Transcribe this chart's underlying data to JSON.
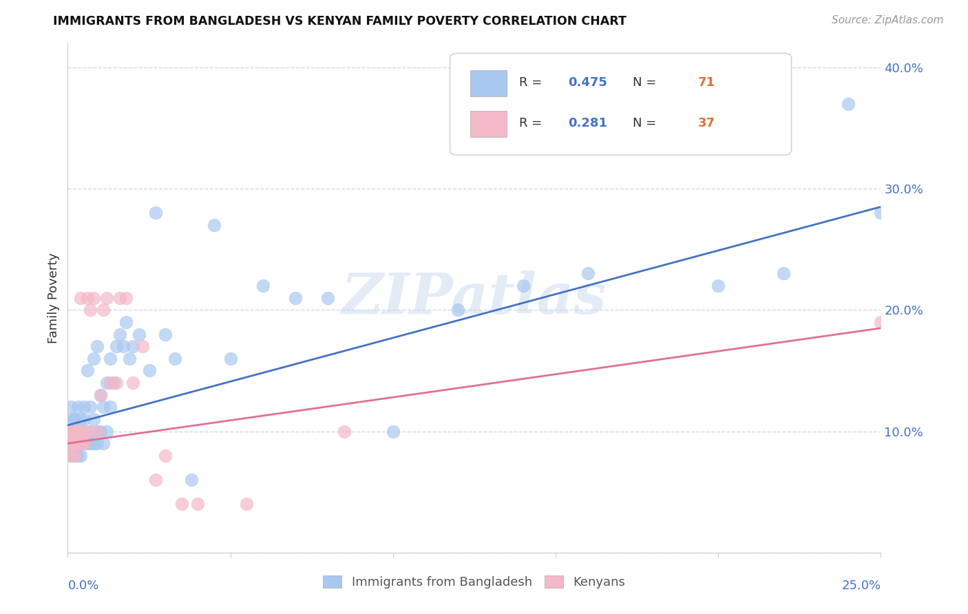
{
  "title": "IMMIGRANTS FROM BANGLADESH VS KENYAN FAMILY POVERTY CORRELATION CHART",
  "source": "Source: ZipAtlas.com",
  "ylabel": "Family Poverty",
  "xlim": [
    0.0,
    0.25
  ],
  "ylim": [
    0.0,
    0.42
  ],
  "yticks": [
    0.0,
    0.1,
    0.2,
    0.3,
    0.4
  ],
  "ytick_labels": [
    "",
    "10.0%",
    "20.0%",
    "30.0%",
    "40.0%"
  ],
  "legend_labels": [
    "Immigrants from Bangladesh",
    "Kenyans"
  ],
  "blue_color": "#a8c8f0",
  "pink_color": "#f5b8c8",
  "blue_line_color": "#4472c4",
  "pink_line_color": "#e07090",
  "watermark": "ZIPatlas",
  "blue_scatter_x": [
    0.001,
    0.001,
    0.001,
    0.001,
    0.001,
    0.002,
    0.002,
    0.002,
    0.002,
    0.002,
    0.002,
    0.003,
    0.003,
    0.003,
    0.003,
    0.003,
    0.004,
    0.004,
    0.004,
    0.004,
    0.005,
    0.005,
    0.005,
    0.005,
    0.006,
    0.006,
    0.006,
    0.007,
    0.007,
    0.007,
    0.008,
    0.008,
    0.008,
    0.009,
    0.009,
    0.009,
    0.01,
    0.01,
    0.011,
    0.011,
    0.012,
    0.012,
    0.013,
    0.013,
    0.014,
    0.015,
    0.016,
    0.017,
    0.018,
    0.019,
    0.02,
    0.022,
    0.025,
    0.027,
    0.03,
    0.033,
    0.038,
    0.045,
    0.05,
    0.06,
    0.07,
    0.08,
    0.1,
    0.12,
    0.14,
    0.16,
    0.175,
    0.2,
    0.22,
    0.24,
    0.25
  ],
  "blue_scatter_y": [
    0.1,
    0.12,
    0.09,
    0.11,
    0.08,
    0.1,
    0.11,
    0.08,
    0.09,
    0.1,
    0.11,
    0.09,
    0.1,
    0.12,
    0.08,
    0.09,
    0.1,
    0.11,
    0.09,
    0.08,
    0.1,
    0.12,
    0.09,
    0.11,
    0.15,
    0.1,
    0.09,
    0.12,
    0.1,
    0.09,
    0.16,
    0.11,
    0.09,
    0.17,
    0.1,
    0.09,
    0.13,
    0.1,
    0.12,
    0.09,
    0.14,
    0.1,
    0.16,
    0.12,
    0.14,
    0.17,
    0.18,
    0.17,
    0.19,
    0.16,
    0.17,
    0.18,
    0.15,
    0.28,
    0.18,
    0.16,
    0.06,
    0.27,
    0.16,
    0.22,
    0.21,
    0.21,
    0.1,
    0.2,
    0.22,
    0.23,
    0.35,
    0.22,
    0.23,
    0.37,
    0.28
  ],
  "pink_scatter_x": [
    0.001,
    0.001,
    0.001,
    0.001,
    0.001,
    0.002,
    0.002,
    0.002,
    0.002,
    0.003,
    0.003,
    0.004,
    0.004,
    0.004,
    0.005,
    0.005,
    0.006,
    0.006,
    0.007,
    0.008,
    0.009,
    0.01,
    0.011,
    0.012,
    0.013,
    0.015,
    0.016,
    0.018,
    0.02,
    0.023,
    0.027,
    0.03,
    0.035,
    0.04,
    0.055,
    0.085,
    0.25
  ],
  "pink_scatter_y": [
    0.1,
    0.09,
    0.08,
    0.1,
    0.09,
    0.09,
    0.1,
    0.09,
    0.08,
    0.1,
    0.09,
    0.21,
    0.1,
    0.09,
    0.1,
    0.09,
    0.21,
    0.1,
    0.2,
    0.21,
    0.1,
    0.13,
    0.2,
    0.21,
    0.14,
    0.14,
    0.21,
    0.21,
    0.14,
    0.17,
    0.06,
    0.08,
    0.04,
    0.04,
    0.04,
    0.1,
    0.19
  ],
  "blue_line_x": [
    0.0,
    0.25
  ],
  "blue_line_y": [
    0.105,
    0.285
  ],
  "pink_line_x": [
    0.0,
    0.25
  ],
  "pink_line_y": [
    0.09,
    0.185
  ],
  "legend_r1": "R = ",
  "legend_v1": "0.475",
  "legend_n1": "N = ",
  "legend_nv1": "71",
  "legend_r2": "R = ",
  "legend_v2": "0.281",
  "legend_n2": "N = ",
  "legend_nv2": "37",
  "text_color": "#333333",
  "blue_label_color": "#4472c4",
  "orange_label_color": "#e07030",
  "grid_color": "#d0d8e8",
  "spine_color": "#cccccc"
}
